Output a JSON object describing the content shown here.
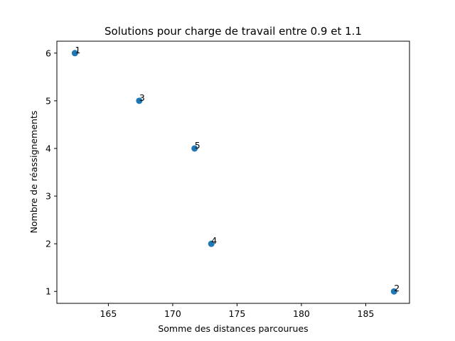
{
  "chart_data": {
    "type": "scatter",
    "title": "Solutions pour charge de travail entre 0.9 et 1.1",
    "xlabel": "Somme des distances parcourues",
    "ylabel": "Nombre de réassignements",
    "xlim": [
      161,
      188.4
    ],
    "ylim": [
      0.75,
      6.25
    ],
    "xticks": [
      165,
      170,
      175,
      180,
      185
    ],
    "yticks": [
      1,
      2,
      3,
      4,
      5,
      6
    ],
    "grid": false,
    "marker_color": "#1f77b4",
    "points": [
      {
        "label": "1",
        "x": 162.4,
        "y": 6
      },
      {
        "label": "3",
        "x": 167.4,
        "y": 5
      },
      {
        "label": "5",
        "x": 171.7,
        "y": 4
      },
      {
        "label": "4",
        "x": 173.0,
        "y": 2
      },
      {
        "label": "2",
        "x": 187.2,
        "y": 1
      }
    ]
  }
}
